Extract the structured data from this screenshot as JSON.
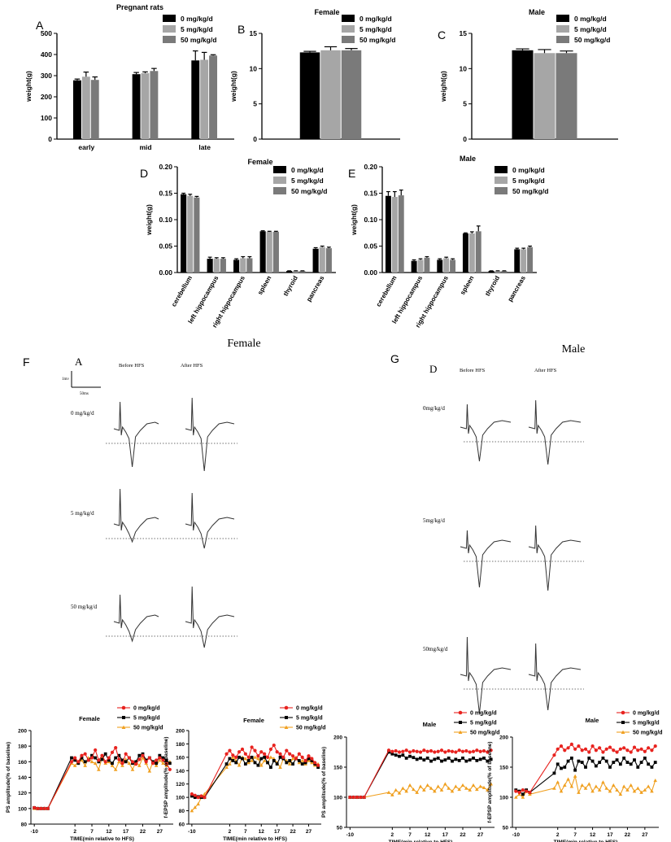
{
  "colors": {
    "dose0": "#000000",
    "dose5": "#a6a6a6",
    "dose50": "#7a7a7a",
    "ltp0": "#e8231f",
    "ltp5": "#000000",
    "ltp50": "#f0a020",
    "trace": "#333333"
  },
  "legend_doses": [
    "0 mg/kg/d",
    "5 mg/kg/d",
    "50 mg/kg/d"
  ],
  "chart_data": [
    {
      "id": "A",
      "panel_letter": "A",
      "type": "bar",
      "title": "Pregnant rats",
      "ylabel": "weight(g)",
      "ylim": [
        0,
        500
      ],
      "yticks": [
        0,
        100,
        200,
        300,
        400,
        500
      ],
      "categories": [
        "early",
        "mid",
        "late"
      ],
      "series": [
        {
          "name": "0 mg/kg/d",
          "values": [
            278,
            307,
            372
          ],
          "errors": [
            6,
            8,
            45
          ]
        },
        {
          "name": "5 mg/kg/d",
          "values": [
            295,
            312,
            375
          ],
          "errors": [
            22,
            6,
            35
          ]
        },
        {
          "name": "50 mg/kg/d",
          "values": [
            280,
            322,
            395
          ],
          "errors": [
            14,
            12,
            4
          ]
        }
      ],
      "legend": "top-right"
    },
    {
      "id": "B",
      "panel_letter": "B",
      "type": "bar",
      "title": "Female",
      "ylabel": "weight(g)",
      "ylim": [
        0,
        15
      ],
      "yticks": [
        0,
        5,
        10,
        15
      ],
      "categories": [
        ""
      ],
      "series": [
        {
          "name": "0 mg/kg/d",
          "values": [
            12.3
          ],
          "errors": [
            0.15
          ]
        },
        {
          "name": "5 mg/kg/d",
          "values": [
            12.6
          ],
          "errors": [
            0.5
          ]
        },
        {
          "name": "50 mg/kg/d",
          "values": [
            12.6
          ],
          "errors": [
            0.25
          ]
        }
      ],
      "legend": "top-right"
    },
    {
      "id": "C",
      "panel_letter": "C",
      "type": "bar",
      "title": "Male",
      "ylabel": "weight(g)",
      "ylim": [
        0,
        15
      ],
      "yticks": [
        0,
        5,
        10,
        15
      ],
      "categories": [
        ""
      ],
      "series": [
        {
          "name": "0 mg/kg/d",
          "values": [
            12.6
          ],
          "errors": [
            0.2
          ]
        },
        {
          "name": "5 mg/kg/d",
          "values": [
            12.2
          ],
          "errors": [
            0.5
          ]
        },
        {
          "name": "50 mg/kg/d",
          "values": [
            12.2
          ],
          "errors": [
            0.3
          ]
        }
      ],
      "legend": "top-right"
    },
    {
      "id": "D",
      "panel_letter": "D",
      "type": "bar",
      "title": "Female",
      "ylabel": "weight(g)",
      "ylim": [
        0,
        0.2
      ],
      "yticks": [
        0,
        0.05,
        0.1,
        0.15,
        0.2
      ],
      "ytick_labels": [
        "0.00",
        "0.05",
        "0.10",
        "0.15",
        "0.20"
      ],
      "categories": [
        "cerebellum",
        "left hippocampus",
        "right hippocampus",
        "spleen",
        "thyroid",
        "pancreas"
      ],
      "series": [
        {
          "name": "0 mg/kg/d",
          "values": [
            0.148,
            0.026,
            0.024,
            0.078,
            0.003,
            0.045
          ],
          "errors": [
            0.002,
            0.003,
            0.002,
            0.001,
            0.0003,
            0.002
          ]
        },
        {
          "name": "5 mg/kg/d",
          "values": [
            0.145,
            0.026,
            0.027,
            0.077,
            0.003,
            0.048
          ],
          "errors": [
            0.003,
            0.002,
            0.003,
            0.001,
            0.0003,
            0.002
          ]
        },
        {
          "name": "50 mg/kg/d",
          "values": [
            0.142,
            0.026,
            0.027,
            0.077,
            0.003,
            0.046
          ],
          "errors": [
            0.002,
            0.002,
            0.003,
            0.001,
            0.0003,
            0.002
          ]
        }
      ],
      "legend": "top-right"
    },
    {
      "id": "E",
      "panel_letter": "E",
      "type": "bar",
      "title": "Male",
      "ylabel": "weight(g)",
      "ylim": [
        0,
        0.2
      ],
      "yticks": [
        0,
        0.05,
        0.1,
        0.15,
        0.2
      ],
      "ytick_labels": [
        "0.00",
        "0.05",
        "0.10",
        "0.15",
        "0.20"
      ],
      "categories": [
        "cerebellum",
        "left hippocampus",
        "right hippocampus",
        "spleen",
        "thyroid",
        "pancreas"
      ],
      "series": [
        {
          "name": "0 mg/kg/d",
          "values": [
            0.145,
            0.022,
            0.024,
            0.074,
            0.003,
            0.044
          ],
          "errors": [
            0.008,
            0.002,
            0.002,
            0.001,
            0.0003,
            0.002
          ]
        },
        {
          "name": "5 mg/kg/d",
          "values": [
            0.143,
            0.024,
            0.027,
            0.074,
            0.003,
            0.044
          ],
          "errors": [
            0.01,
            0.002,
            0.002,
            0.003,
            0.0003,
            0.002
          ]
        },
        {
          "name": "50 mg/kg/d",
          "values": [
            0.146,
            0.028,
            0.024,
            0.078,
            0.003,
            0.048
          ],
          "errors": [
            0.01,
            0.002,
            0.002,
            0.01,
            0.0003,
            0.002
          ]
        }
      ],
      "legend": "top-right"
    },
    {
      "id": "H1",
      "type": "line",
      "title": "Female",
      "xlabel": "TIME(min relative to HFS)",
      "ylabel": "PS amplitude(% of baseline)",
      "xlim": [
        -11,
        31
      ],
      "xticks": [
        -10,
        2,
        7,
        12,
        17,
        22,
        27
      ],
      "ylim": [
        80,
        200
      ],
      "yticks": [
        80,
        100,
        120,
        140,
        160,
        180,
        200
      ],
      "x": [
        -10,
        -9,
        -8,
        -7,
        -6,
        1,
        2,
        3,
        4,
        5,
        6,
        7,
        8,
        9,
        10,
        11,
        12,
        13,
        14,
        15,
        16,
        17,
        18,
        19,
        20,
        21,
        22,
        23,
        24,
        25,
        26,
        27,
        28,
        29,
        30
      ],
      "series": [
        {
          "name": "0 mg/kg/d",
          "values": [
            101,
            100,
            100,
            100,
            100,
            160,
            165,
            160,
            168,
            170,
            162,
            165,
            175,
            162,
            168,
            160,
            165,
            172,
            178,
            163,
            158,
            170,
            165,
            160,
            157,
            163,
            168,
            160,
            165,
            158,
            162,
            165,
            162,
            158,
            150
          ]
        },
        {
          "name": "5 mg/kg/d",
          "values": [
            101,
            100,
            100,
            100,
            100,
            165,
            162,
            158,
            165,
            160,
            162,
            168,
            165,
            160,
            163,
            170,
            162,
            158,
            165,
            168,
            162,
            160,
            165,
            158,
            160,
            168,
            170,
            162,
            165,
            160,
            158,
            168,
            165,
            162,
            158
          ]
        },
        {
          "name": "50 mg/kg/d",
          "values": [
            100,
            100,
            100,
            100,
            100,
            158,
            155,
            160,
            162,
            155,
            165,
            160,
            158,
            150,
            165,
            158,
            160,
            155,
            150,
            160,
            155,
            163,
            158,
            150,
            160,
            155,
            165,
            158,
            148,
            160,
            155,
            162,
            158,
            155,
            160
          ]
        }
      ],
      "legend": "top-right"
    },
    {
      "id": "H2",
      "type": "line",
      "title": "Female",
      "xlabel": "TIME(min relative to HFS)",
      "ylabel": "f-EPSP amplitude(% of baseline)",
      "xlim": [
        -11,
        31
      ],
      "xticks": [
        -10,
        2,
        7,
        12,
        17,
        22,
        27
      ],
      "ylim": [
        60,
        200
      ],
      "yticks": [
        60,
        80,
        100,
        120,
        140,
        160,
        180,
        200
      ],
      "x": [
        -10,
        -9,
        -8,
        -7,
        -6,
        1,
        2,
        3,
        4,
        5,
        6,
        7,
        8,
        9,
        10,
        11,
        12,
        13,
        14,
        15,
        16,
        17,
        18,
        19,
        20,
        21,
        22,
        23,
        24,
        25,
        26,
        27,
        28,
        29,
        30
      ],
      "series": [
        {
          "name": "0 mg/kg/d",
          "values": [
            105,
            103,
            100,
            102,
            100,
            165,
            170,
            163,
            160,
            168,
            172,
            165,
            160,
            175,
            170,
            162,
            168,
            165,
            160,
            172,
            178,
            168,
            165,
            160,
            170,
            165,
            162,
            158,
            165,
            160,
            155,
            162,
            158,
            152,
            148
          ]
        },
        {
          "name": "5 mg/kg/d",
          "values": [
            102,
            100,
            101,
            100,
            100,
            150,
            158,
            155,
            152,
            160,
            158,
            150,
            155,
            160,
            152,
            148,
            158,
            160,
            152,
            145,
            155,
            150,
            160,
            158,
            152,
            155,
            150,
            158,
            155,
            150,
            152,
            158,
            155,
            150,
            145
          ]
        },
        {
          "name": "50 mg/kg/d",
          "values": [
            80,
            85,
            90,
            100,
            105,
            145,
            150,
            160,
            155,
            148,
            160,
            158,
            152,
            155,
            160,
            158,
            148,
            155,
            152,
            160,
            158,
            152,
            145,
            158,
            155,
            150,
            158,
            160,
            152,
            155,
            150,
            155,
            152,
            148,
            150
          ]
        }
      ],
      "legend": "top-right"
    },
    {
      "id": "H3",
      "type": "line",
      "title": "Male",
      "xlabel": "TIME(min relative to HFS)",
      "ylabel": "PS amplitude(% of baseline)",
      "xlim": [
        -11,
        31
      ],
      "xticks": [
        -10,
        2,
        7,
        12,
        17,
        22,
        27
      ],
      "ylim": [
        50,
        200
      ],
      "yticks": [
        50,
        100,
        150,
        200
      ],
      "x": [
        -10,
        -9,
        -8,
        -7,
        -6,
        1,
        2,
        3,
        4,
        5,
        6,
        7,
        8,
        9,
        10,
        11,
        12,
        13,
        14,
        15,
        16,
        17,
        18,
        19,
        20,
        21,
        22,
        23,
        24,
        25,
        26,
        27,
        28,
        29,
        30
      ],
      "series": [
        {
          "name": "0 mg/kg/d",
          "values": [
            100,
            100,
            100,
            100,
            100,
            178,
            176,
            177,
            175,
            176,
            178,
            175,
            177,
            176,
            175,
            178,
            176,
            177,
            175,
            176,
            178,
            175,
            177,
            176,
            175,
            178,
            176,
            177,
            175,
            176,
            178,
            176,
            177,
            175,
            178
          ]
        },
        {
          "name": "5 mg/kg/d",
          "values": [
            100,
            100,
            100,
            100,
            100,
            175,
            172,
            170,
            168,
            170,
            165,
            168,
            166,
            163,
            165,
            162,
            165,
            160,
            163,
            165,
            160,
            162,
            165,
            160,
            163,
            161,
            165,
            160,
            162,
            165,
            161,
            163,
            165,
            160,
            163
          ]
        },
        {
          "name": "50 mg/kg/d",
          "values": [
            100,
            100,
            100,
            100,
            100,
            108,
            104,
            112,
            107,
            115,
            110,
            120,
            113,
            108,
            118,
            112,
            120,
            115,
            110,
            118,
            112,
            122,
            115,
            110,
            118,
            113,
            120,
            115,
            112,
            120,
            113,
            118,
            116,
            112,
            122
          ]
        }
      ],
      "legend": "top-right"
    },
    {
      "id": "H4",
      "type": "line",
      "title": "Male",
      "xlabel": "TIME(min relative to HFS)",
      "ylabel": "f-EPSP amplitude(% of baseline)",
      "xlim": [
        -11,
        31
      ],
      "xticks": [
        -10,
        2,
        7,
        12,
        17,
        22,
        27
      ],
      "ylim": [
        50,
        200
      ],
      "yticks": [
        50,
        100,
        150,
        200
      ],
      "x": [
        -10,
        -9,
        -8,
        -7,
        -6,
        1,
        2,
        3,
        4,
        5,
        6,
        7,
        8,
        9,
        10,
        11,
        12,
        13,
        14,
        15,
        16,
        17,
        18,
        19,
        20,
        21,
        22,
        23,
        24,
        25,
        26,
        27,
        28,
        29,
        30
      ],
      "series": [
        {
          "name": "0 mg/kg/d",
          "values": [
            110,
            108,
            112,
            110,
            108,
            170,
            180,
            185,
            178,
            182,
            188,
            180,
            185,
            178,
            180,
            175,
            185,
            178,
            182,
            175,
            180,
            183,
            178,
            175,
            180,
            182,
            178,
            175,
            183,
            178,
            180,
            176,
            182,
            178,
            185
          ]
        },
        {
          "name": "5 mg/kg/d",
          "values": [
            112,
            110,
            105,
            112,
            108,
            140,
            155,
            148,
            150,
            160,
            165,
            145,
            160,
            158,
            150,
            165,
            160,
            152,
            158,
            165,
            160,
            150,
            158,
            162,
            155,
            165,
            158,
            155,
            162,
            150,
            158,
            165,
            155,
            150,
            158
          ]
        },
        {
          "name": "50 mg/kg/d",
          "values": [
            100,
            105,
            100,
            110,
            105,
            115,
            125,
            110,
            120,
            130,
            118,
            135,
            108,
            120,
            115,
            122,
            110,
            118,
            112,
            125,
            115,
            110,
            120,
            112,
            105,
            118,
            112,
            120,
            110,
            115,
            108,
            112,
            118,
            110,
            128
          ]
        }
      ],
      "legend": "top-right"
    }
  ],
  "traces": {
    "female": {
      "title": "Female",
      "panel_letter": "F",
      "sublabel": "A",
      "col_labels": [
        "Before HFS",
        "After HFS"
      ],
      "scale_y_label": "1mv",
      "scale_x_label": "50ms",
      "rows": [
        "0 mg/kg/d",
        "5 mg/kg/d",
        "50 mg/kg/d"
      ]
    },
    "male": {
      "title": "Male",
      "panel_letter": "G",
      "sublabel": "D",
      "col_labels": [
        "Before HFS",
        "After HFS"
      ],
      "rows": [
        "0mg/kg/d",
        "5mg/kg/d",
        "50mg/kg/d"
      ]
    }
  }
}
